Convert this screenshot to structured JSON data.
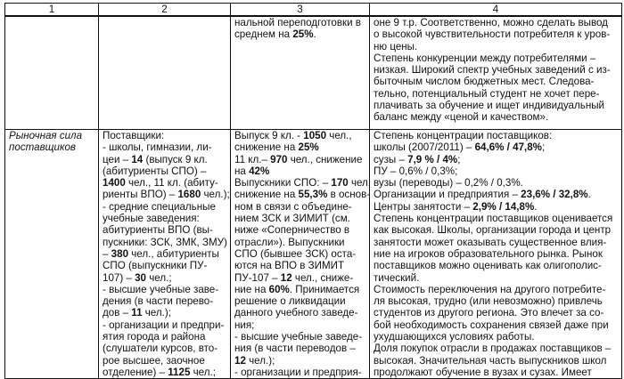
{
  "headers": [
    "1",
    "2",
    "3",
    "4"
  ],
  "rows": [
    {
      "c1": [],
      "c2": [],
      "c3": [
        [
          [
            "нальной переподготовки в",
            0
          ]
        ],
        [
          [
            "среднем на ",
            0
          ],
          [
            "25%",
            1
          ],
          [
            ".",
            0
          ]
        ]
      ],
      "c4": [
        [
          [
            "оне 9 т.р. Соответственно, можно сделать вывод",
            0
          ]
        ],
        [
          [
            "о высокой чувствительности потребителя к уров-",
            0
          ]
        ],
        [
          [
            "ню цены.",
            0
          ]
        ],
        [
          [
            "Степень конкуренции между потребителями –",
            0
          ]
        ],
        [
          [
            "низкая. Широкий спектр учебных заведений с из-",
            0
          ]
        ],
        [
          [
            "быточным числом бюджетных мест. Следова-",
            0
          ]
        ],
        [
          [
            "тельно, потенциальный студент не хочет пере-",
            0
          ]
        ],
        [
          [
            "плачивать за обучение и ищет индивидуальный",
            0
          ]
        ],
        [
          [
            "баланс между «ценой и качеством».",
            0
          ]
        ]
      ]
    },
    {
      "c1": [
        [
          [
            "Рыночная сила",
            0
          ]
        ],
        [
          [
            "поставщиков",
            0
          ]
        ]
      ],
      "c2": [
        [
          [
            "Поставщики:",
            0
          ]
        ],
        [
          [
            "- школы, гимназии, ли-",
            0
          ]
        ],
        [
          [
            "цеи – ",
            0
          ],
          [
            "14",
            1
          ],
          [
            " (выпуск 9 кл.",
            0
          ]
        ],
        [
          [
            "(абитуриенты СПО) –",
            0
          ]
        ],
        [
          [
            "1400",
            1
          ],
          [
            " чел., 11 кл. (абиту-",
            0
          ]
        ],
        [
          [
            "риенты ВПО) – ",
            0
          ],
          [
            "1680",
            1
          ],
          [
            " чел.);",
            0
          ]
        ],
        [
          [
            "- средние специальные",
            0
          ]
        ],
        [
          [
            "учебные заведения:",
            0
          ]
        ],
        [
          [
            "абитуриенты ВПО (вы-",
            0
          ]
        ],
        [
          [
            "пускники: ЗСК, ЗМК, ЗМУ)",
            0
          ]
        ],
        [
          [
            "– ",
            0
          ],
          [
            "380",
            1
          ],
          [
            " чел., абитуриенты",
            0
          ]
        ],
        [
          [
            "СПО (выпускники ПУ-",
            0
          ]
        ],
        [
          [
            "107) – ",
            0
          ],
          [
            "30",
            1
          ],
          [
            " чел.;",
            0
          ]
        ],
        [
          [
            "- высшие учебные заве-",
            0
          ]
        ],
        [
          [
            "дения (в части перево-",
            0
          ]
        ],
        [
          [
            "дов – ",
            0
          ],
          [
            "11",
            1
          ],
          [
            " чел.);",
            0
          ]
        ],
        [
          [
            "- организации и предпри-",
            0
          ]
        ],
        [
          [
            "ятия города и района",
            0
          ]
        ],
        [
          [
            "(слушатели курсов, вто-",
            0
          ]
        ],
        [
          [
            "рое высшее, заочное",
            0
          ]
        ],
        [
          [
            "отделение) – ",
            0
          ],
          [
            "1125",
            1
          ],
          [
            " чел.;",
            0
          ]
        ]
      ],
      "c3": [
        [
          [
            "Выпуск 9 кл. - ",
            0
          ],
          [
            "1050",
            1
          ],
          [
            " чел.,",
            0
          ]
        ],
        [
          [
            "снижение на ",
            0
          ],
          [
            "25%",
            1
          ]
        ],
        [
          [
            "11 кл.– ",
            0
          ],
          [
            "970",
            1
          ],
          [
            " чел., снижение",
            0
          ]
        ],
        [
          [
            "на ",
            0
          ],
          [
            "42%",
            1
          ]
        ],
        [
          [
            "Выпускники СПО: – ",
            0
          ],
          [
            "170",
            1
          ],
          [
            " чел.,",
            0
          ]
        ],
        [
          [
            "снижение на ",
            0
          ],
          [
            "55,3%",
            1
          ],
          [
            " в основ-",
            0
          ]
        ],
        [
          [
            "ном в связи с объедине-",
            0
          ]
        ],
        [
          [
            "нием ЗСК и ЗИМИТ (см.",
            0
          ]
        ],
        [
          [
            "ниже «Соперничество в",
            0
          ]
        ],
        [
          [
            "отрасли»). Выпускники",
            0
          ]
        ],
        [
          [
            "СПО (бывшее ЗСК) оста-",
            0
          ]
        ],
        [
          [
            "ются на ВПО в ЗИМИТ",
            0
          ]
        ],
        [
          [
            "ПУ-107 – ",
            0
          ],
          [
            "12",
            1
          ],
          [
            " чел., сниже-",
            0
          ]
        ],
        [
          [
            "ние на ",
            0
          ],
          [
            "60%",
            1
          ],
          [
            ". Принимается",
            0
          ]
        ],
        [
          [
            "решение о ликвидации",
            0
          ]
        ],
        [
          [
            "данного учебного заведе-",
            0
          ]
        ],
        [
          [
            "ния;",
            0
          ]
        ],
        [
          [
            "- высшие учебные заведе-",
            0
          ]
        ],
        [
          [
            "ния (в части переводов –",
            0
          ]
        ],
        [
          [
            "12",
            1
          ],
          [
            " чел.);",
            0
          ]
        ],
        [
          [
            "- организации и предприя-",
            0
          ]
        ]
      ],
      "c4": [
        [
          [
            "Степень концентрации поставщиков:",
            0
          ]
        ],
        [
          [
            "школы (2007/2011) – ",
            0
          ],
          [
            "64,6% / 47,8%",
            1
          ],
          [
            ";",
            0
          ]
        ],
        [
          [
            "сузы – ",
            0
          ],
          [
            "7,9 % / 4%",
            1
          ],
          [
            ";",
            0
          ]
        ],
        [
          [
            "ПУ – 0,6% / 0,3%;",
            0
          ]
        ],
        [
          [
            "вузы (переводы) – 0,2% / 0,3%.",
            0
          ]
        ],
        [
          [
            "Организации и предприятия – ",
            0
          ],
          [
            "23,6% / 32,8%",
            1
          ],
          [
            ".",
            0
          ]
        ],
        [
          [
            "Центры занятости – ",
            0
          ],
          [
            "2,9% / 14,8%",
            1
          ],
          [
            ".",
            0
          ]
        ],
        [
          [
            "Степень концентрации поставщиков оценивается",
            0
          ]
        ],
        [
          [
            "как высокая. Школы, организации города и центр",
            0
          ]
        ],
        [
          [
            "занятости может оказывать существенное влия-",
            0
          ]
        ],
        [
          [
            "ние на игроков образовательного рынка. Рынок",
            0
          ]
        ],
        [
          [
            "поставщиков можно оценивать как олигополис-",
            0
          ]
        ],
        [
          [
            "тический.",
            0
          ]
        ],
        [
          [
            "Стоимость переключения на другого потребите-",
            0
          ]
        ],
        [
          [
            "ля высокая, трудно (или невозможно) привлечь",
            0
          ]
        ],
        [
          [
            "студентов из другого региона. Это влечет за со-",
            0
          ]
        ],
        [
          [
            "бой необходимость сохранения связей даже при",
            0
          ]
        ],
        [
          [
            "ухудшающихся условиях работы.",
            0
          ]
        ],
        [
          [
            "Доля покупок отрасли в продажах поставщиков –",
            0
          ]
        ],
        [
          [
            "высокая. Значительная часть выпускников школ",
            0
          ]
        ],
        [
          [
            "продолжают обучение в вузах и сузах. Имеет",
            0
          ]
        ]
      ]
    }
  ]
}
